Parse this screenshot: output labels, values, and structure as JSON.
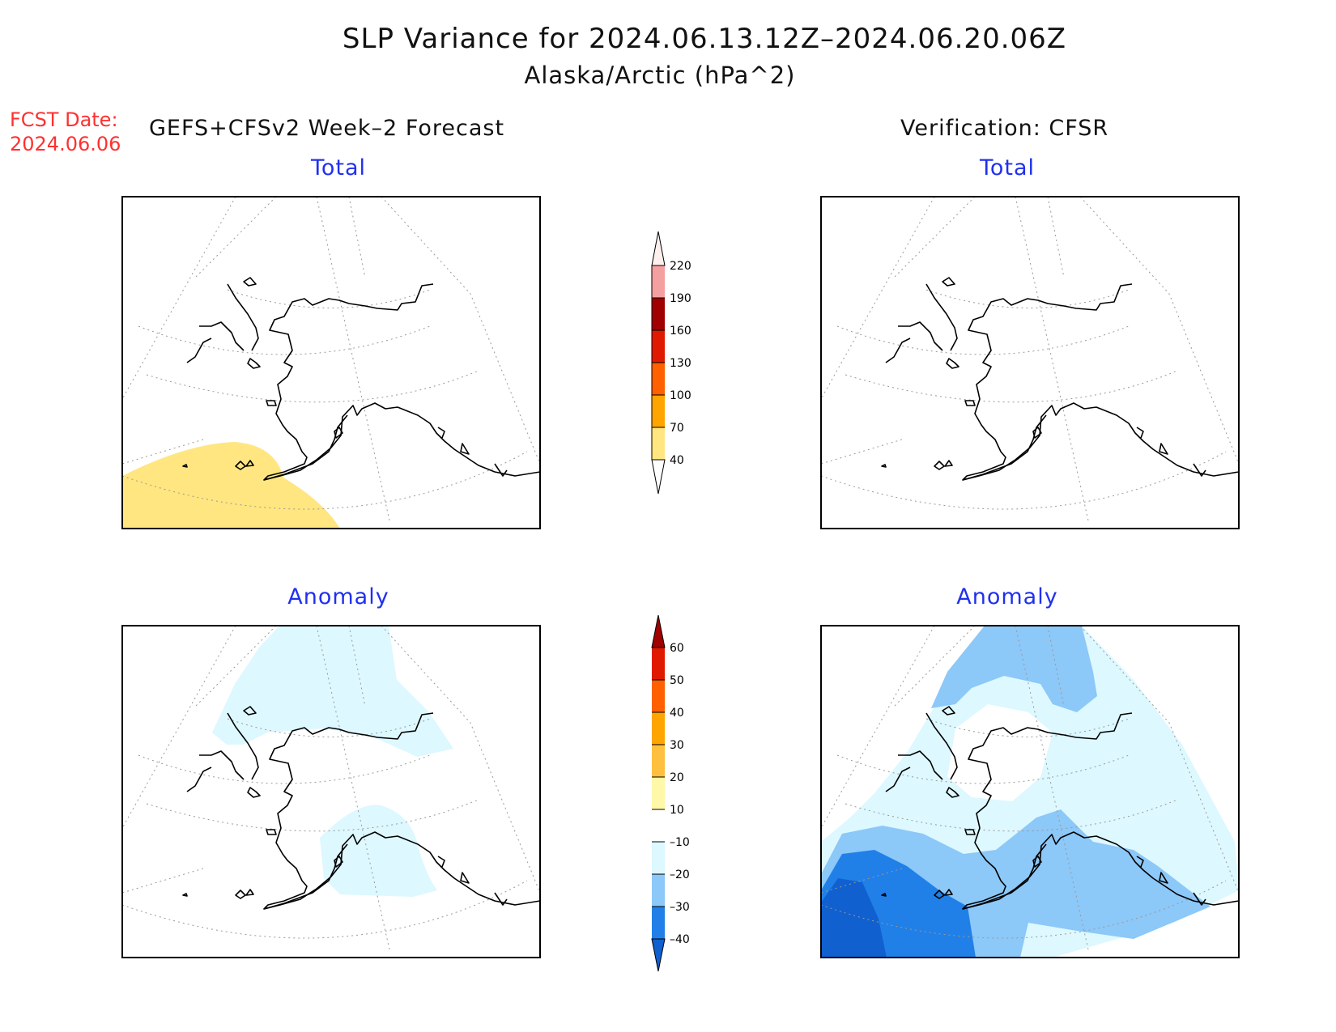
{
  "title": "SLP Variance for 2024.06.13.12Z–2024.06.20.06Z",
  "subtitle": "Alaska/Arctic (hPa^2)",
  "fcst_date_label": "FCST Date:",
  "fcst_date_value": "2024.06.06",
  "left_header": "GEFS+CFSv2 Week–2 Forecast",
  "right_header": "Verification: CFSR",
  "panel_titles": {
    "forecast_total": "Total",
    "verification_total": "Total",
    "forecast_anomaly": "Anomaly",
    "verification_anomaly": "Anomaly"
  },
  "total_colorbar": {
    "labels": [
      "40",
      "70",
      "100",
      "130",
      "160",
      "190",
      "220"
    ],
    "colors": [
      "#ffe680",
      "#ffa500",
      "#ff6000",
      "#e01a00",
      "#a00000",
      "#f4a0a0",
      "#fff0ee"
    ]
  },
  "anomaly_colorbar": {
    "labels": [
      "–40",
      "–30",
      "–20",
      "–10",
      "10",
      "20",
      "30",
      "40",
      "50",
      "60"
    ],
    "colors": [
      "#1060d0",
      "#2080e8",
      "#8cc8f8",
      "#ddf8ff",
      "#ffffff",
      "#fff8a8",
      "#ffc040",
      "#ffa500",
      "#ff6000",
      "#e01a00",
      "#a00000"
    ]
  },
  "colors": {
    "title_blue": "#2030f0",
    "fcst_red": "#ff3030"
  }
}
